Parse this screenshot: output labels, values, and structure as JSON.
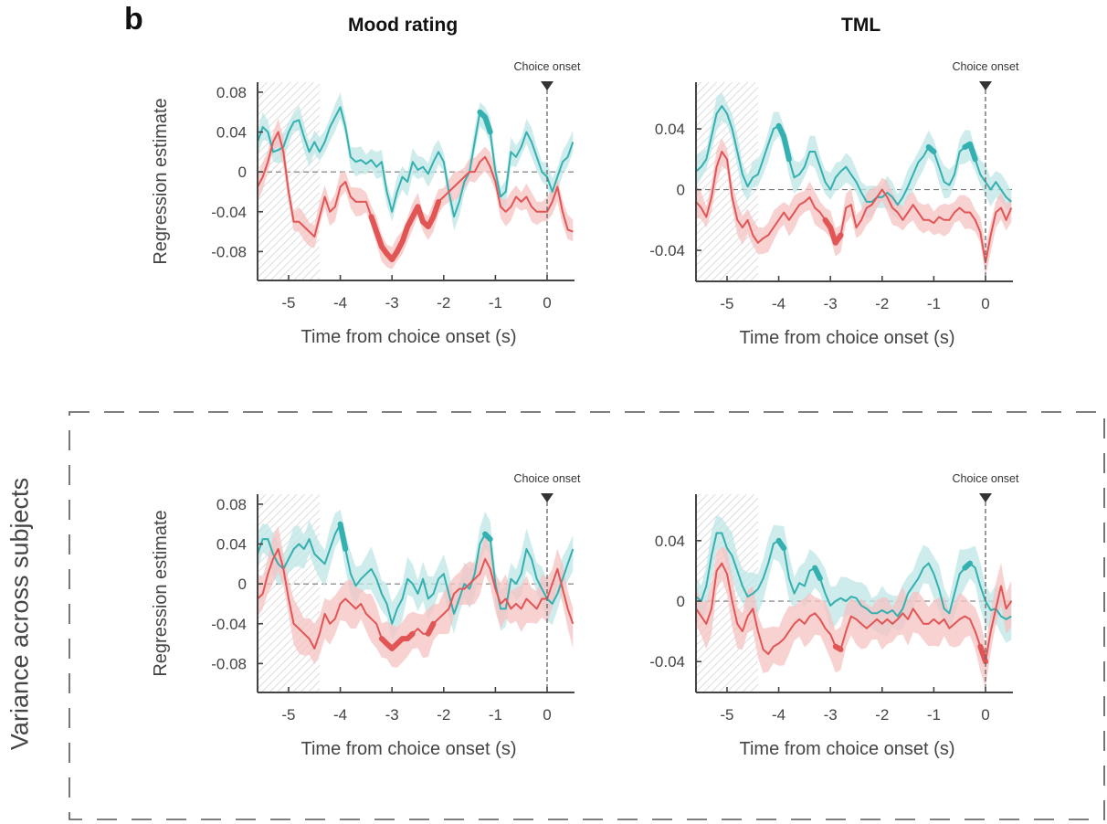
{
  "figure": {
    "panel_letter": "b",
    "column_titles": [
      "Mood rating",
      "TML"
    ],
    "row_label": "Variance across subjects",
    "colors": {
      "teal_line": "#35b0b0",
      "teal_band": "#bde5e5",
      "red_line": "#e25555",
      "red_band": "#f6c2c2",
      "axis": "#444444",
      "hatch": "#d0d0d0"
    }
  },
  "chart_data": [
    {
      "id": "top-mood",
      "type": "line",
      "title": "Mood rating",
      "xlabel": "Time from choice onset (s)",
      "ylabel": "Regression estimate",
      "xlim": [
        -5.6,
        0.53
      ],
      "ylim": [
        -0.109,
        0.09
      ],
      "xticks": [
        -5,
        -4,
        -3,
        -2,
        -1,
        0
      ],
      "xtick_labels": [
        "-5",
        "-4",
        "-3",
        "-2",
        "-1",
        "0"
      ],
      "yticks": [
        0.08,
        0.04,
        0,
        -0.04,
        -0.08
      ],
      "ytick_labels": [
        "0.08",
        "0.04",
        "0",
        "-0.04",
        "-0.08"
      ],
      "annotation": "Choice onset",
      "onset_x": 0,
      "hatched_window": [
        -5.6,
        -4.4
      ],
      "zero_line": true,
      "x": [
        -5.6,
        -5.5,
        -5.4,
        -5.3,
        -5.2,
        -5.1,
        -5.0,
        -4.9,
        -4.8,
        -4.7,
        -4.6,
        -4.5,
        -4.4,
        -4.3,
        -4.2,
        -4.1,
        -4.0,
        -3.9,
        -3.8,
        -3.7,
        -3.6,
        -3.5,
        -3.4,
        -3.3,
        -3.2,
        -3.1,
        -3.0,
        -2.9,
        -2.8,
        -2.7,
        -2.6,
        -2.5,
        -2.4,
        -2.3,
        -2.2,
        -2.1,
        -2.0,
        -1.9,
        -1.8,
        -1.7,
        -1.6,
        -1.5,
        -1.4,
        -1.3,
        -1.2,
        -1.1,
        -1.0,
        -0.9,
        -0.8,
        -0.7,
        -0.6,
        -0.5,
        -0.4,
        -0.3,
        -0.2,
        -0.1,
        0.0,
        0.1,
        0.2,
        0.3,
        0.4,
        0.5
      ],
      "series": [
        {
          "name": "teal",
          "values": [
            0.03,
            0.045,
            0.04,
            0.02,
            0.022,
            0.025,
            0.04,
            0.05,
            0.052,
            0.035,
            0.02,
            0.03,
            0.02,
            0.03,
            0.045,
            0.055,
            0.065,
            0.045,
            0.015,
            0.01,
            0.012,
            0.008,
            0.012,
            0.005,
            0.01,
            -0.02,
            -0.04,
            -0.02,
            -0.005,
            -0.01,
            0.01,
            0.002,
            0.005,
            -0.002,
            0.01,
            0.02,
            0.01,
            -0.02,
            -0.045,
            -0.03,
            -0.01,
            0.0,
            0.03,
            0.06,
            0.055,
            0.04,
            0.0,
            -0.025,
            -0.02,
            0.02,
            0.015,
            0.025,
            0.04,
            0.03,
            0.015,
            0.0,
            -0.005,
            -0.02,
            -0.005,
            0.01,
            0.015,
            0.03
          ],
          "band_halfwidth": 0.012,
          "significant": [
            [
              -1.35,
              -1.05
            ]
          ]
        },
        {
          "name": "red",
          "values": [
            -0.015,
            -0.005,
            0.01,
            0.03,
            0.04,
            0.02,
            -0.02,
            -0.05,
            -0.05,
            -0.055,
            -0.06,
            -0.065,
            -0.045,
            -0.025,
            -0.04,
            -0.035,
            -0.015,
            -0.01,
            -0.025,
            -0.03,
            -0.03,
            -0.03,
            -0.045,
            -0.06,
            -0.075,
            -0.082,
            -0.088,
            -0.08,
            -0.07,
            -0.055,
            -0.045,
            -0.035,
            -0.05,
            -0.055,
            -0.045,
            -0.03,
            -0.025,
            -0.02,
            -0.015,
            -0.01,
            -0.005,
            0.0,
            0.0,
            0.01,
            0.015,
            0.005,
            -0.01,
            -0.035,
            -0.04,
            -0.035,
            -0.025,
            -0.03,
            -0.025,
            -0.035,
            -0.04,
            -0.04,
            -0.04,
            -0.03,
            -0.015,
            -0.04,
            -0.058,
            -0.06
          ],
          "band_halfwidth": 0.012,
          "significant": [
            [
              -3.4,
              -2.1
            ]
          ]
        }
      ]
    },
    {
      "id": "top-tml",
      "type": "line",
      "title": "TML",
      "xlabel": "Time from choice onset (s)",
      "ylabel": "",
      "xlim": [
        -5.6,
        0.53
      ],
      "ylim": [
        -0.0604,
        0.0707
      ],
      "xticks": [
        -5,
        -4,
        -3,
        -2,
        -1,
        0
      ],
      "xtick_labels": [
        "-5",
        "-4",
        "-3",
        "-2",
        "-1",
        "0"
      ],
      "yticks": [
        0.04,
        0,
        -0.04
      ],
      "ytick_labels": [
        "0.04",
        "0",
        "-0.04"
      ],
      "annotation": "Choice onset",
      "onset_x": 0,
      "hatched_window": [
        -5.6,
        -4.4
      ],
      "zero_line": true,
      "x": [
        -5.6,
        -5.5,
        -5.4,
        -5.3,
        -5.2,
        -5.1,
        -5.0,
        -4.9,
        -4.8,
        -4.7,
        -4.6,
        -4.5,
        -4.4,
        -4.3,
        -4.2,
        -4.1,
        -4.0,
        -3.9,
        -3.8,
        -3.7,
        -3.6,
        -3.5,
        -3.4,
        -3.3,
        -3.2,
        -3.1,
        -3.0,
        -2.9,
        -2.8,
        -2.7,
        -2.6,
        -2.5,
        -2.4,
        -2.3,
        -2.2,
        -2.1,
        -2.0,
        -1.9,
        -1.8,
        -1.7,
        -1.6,
        -1.5,
        -1.4,
        -1.3,
        -1.2,
        -1.1,
        -1.0,
        -0.9,
        -0.8,
        -0.7,
        -0.6,
        -0.5,
        -0.4,
        -0.3,
        -0.2,
        -0.1,
        0.0,
        0.1,
        0.2,
        0.3,
        0.4,
        0.5
      ],
      "series": [
        {
          "name": "teal",
          "values": [
            0.012,
            0.015,
            0.02,
            0.035,
            0.05,
            0.055,
            0.05,
            0.04,
            0.025,
            0.01,
            0.002,
            0.008,
            0.01,
            0.02,
            0.03,
            0.04,
            0.042,
            0.035,
            0.02,
            0.008,
            0.01,
            0.015,
            0.025,
            0.025,
            0.015,
            0.005,
            0.0,
            0.008,
            0.012,
            0.015,
            0.01,
            0.005,
            -0.002,
            -0.008,
            -0.008,
            -0.005,
            -0.005,
            -0.002,
            -0.005,
            -0.01,
            -0.005,
            0.002,
            0.01,
            0.018,
            0.022,
            0.028,
            0.025,
            0.015,
            0.005,
            0.003,
            0.01,
            0.025,
            0.028,
            0.03,
            0.02,
            0.01,
            0.005,
            0.0,
            0.005,
            0.0,
            -0.005,
            -0.008
          ],
          "band_halfwidth": 0.009,
          "significant": [
            [
              -4.05,
              -3.75
            ],
            [
              -1.15,
              -0.95
            ],
            [
              -0.45,
              -0.2
            ]
          ]
        },
        {
          "name": "red",
          "values": [
            -0.008,
            -0.012,
            -0.018,
            -0.005,
            0.015,
            0.025,
            0.02,
            -0.005,
            -0.02,
            -0.025,
            -0.02,
            -0.03,
            -0.035,
            -0.032,
            -0.03,
            -0.025,
            -0.02,
            -0.015,
            -0.02,
            -0.015,
            -0.01,
            -0.008,
            -0.005,
            -0.012,
            -0.015,
            -0.02,
            -0.025,
            -0.035,
            -0.03,
            -0.012,
            -0.01,
            -0.025,
            -0.02,
            -0.012,
            -0.01,
            -0.005,
            0.0,
            -0.005,
            -0.012,
            -0.015,
            -0.02,
            -0.015,
            -0.01,
            -0.015,
            -0.02,
            -0.02,
            -0.022,
            -0.018,
            -0.02,
            -0.02,
            -0.015,
            -0.012,
            -0.015,
            -0.015,
            -0.02,
            -0.028,
            -0.048,
            -0.03,
            -0.015,
            -0.012,
            -0.02,
            -0.012
          ],
          "band_halfwidth": 0.009,
          "significant": [
            [
              -3.1,
              -2.75
            ]
          ]
        }
      ]
    },
    {
      "id": "bottom-mood",
      "type": "line",
      "title": "",
      "xlabel": "Time from choice onset (s)",
      "ylabel": "Regression estimate",
      "xlim": [
        -5.6,
        0.53
      ],
      "ylim": [
        -0.109,
        0.09
      ],
      "xticks": [
        -5,
        -4,
        -3,
        -2,
        -1,
        0
      ],
      "xtick_labels": [
        "-5",
        "-4",
        "-3",
        "-2",
        "-1",
        "0"
      ],
      "yticks": [
        0.08,
        0.04,
        0,
        -0.04,
        -0.08
      ],
      "ytick_labels": [
        "0.08",
        "0.04",
        "0",
        "-0.04",
        "-0.08"
      ],
      "annotation": "Choice onset",
      "onset_x": 0,
      "hatched_window": [
        -5.6,
        -4.4
      ],
      "zero_line": true,
      "x": [
        -5.6,
        -5.5,
        -5.4,
        -5.3,
        -5.2,
        -5.1,
        -5.0,
        -4.9,
        -4.8,
        -4.7,
        -4.6,
        -4.5,
        -4.4,
        -4.3,
        -4.2,
        -4.1,
        -4.0,
        -3.9,
        -3.8,
        -3.7,
        -3.6,
        -3.5,
        -3.4,
        -3.3,
        -3.2,
        -3.1,
        -3.0,
        -2.9,
        -2.8,
        -2.7,
        -2.6,
        -2.5,
        -2.4,
        -2.3,
        -2.2,
        -2.1,
        -2.0,
        -1.9,
        -1.8,
        -1.7,
        -1.6,
        -1.5,
        -1.4,
        -1.3,
        -1.2,
        -1.1,
        -1.0,
        -0.9,
        -0.8,
        -0.7,
        -0.6,
        -0.5,
        -0.4,
        -0.3,
        -0.2,
        -0.1,
        0.0,
        0.1,
        0.2,
        0.3,
        0.4,
        0.5
      ],
      "series": [
        {
          "name": "teal",
          "values": [
            0.03,
            0.045,
            0.045,
            0.03,
            0.02,
            0.015,
            0.025,
            0.035,
            0.04,
            0.035,
            0.045,
            0.03,
            0.025,
            0.02,
            0.035,
            0.05,
            0.06,
            0.035,
            0.01,
            -0.002,
            0.005,
            0.01,
            0.015,
            0.005,
            -0.01,
            -0.02,
            -0.04,
            -0.025,
            -0.015,
            0.005,
            0.0,
            -0.01,
            0.005,
            -0.015,
            -0.01,
            0.005,
            0.01,
            -0.01,
            -0.03,
            -0.015,
            0.0,
            -0.005,
            0.01,
            0.04,
            0.05,
            0.045,
            0.0,
            -0.025,
            -0.025,
            0.005,
            0.0,
            0.01,
            0.035,
            0.025,
            0.005,
            -0.005,
            -0.015,
            -0.02,
            -0.01,
            0.005,
            0.02,
            0.035
          ],
          "band_halfwidth": 0.018,
          "significant": [
            [
              -4.05,
              -3.9
            ],
            [
              -1.25,
              -1.1
            ]
          ]
        },
        {
          "name": "red",
          "values": [
            -0.015,
            -0.01,
            0.01,
            0.025,
            0.035,
            0.015,
            -0.015,
            -0.04,
            -0.045,
            -0.05,
            -0.055,
            -0.065,
            -0.05,
            -0.03,
            -0.04,
            -0.035,
            -0.02,
            -0.015,
            -0.02,
            -0.025,
            -0.02,
            -0.03,
            -0.035,
            -0.04,
            -0.055,
            -0.06,
            -0.065,
            -0.06,
            -0.055,
            -0.055,
            -0.05,
            -0.045,
            -0.05,
            -0.05,
            -0.04,
            -0.035,
            -0.03,
            -0.025,
            -0.01,
            -0.005,
            -0.005,
            0.0,
            0.005,
            0.01,
            0.025,
            0.015,
            -0.005,
            -0.02,
            -0.015,
            -0.025,
            -0.02,
            -0.025,
            -0.015,
            -0.02,
            -0.025,
            -0.015,
            -0.015,
            0.0,
            0.015,
            -0.005,
            -0.025,
            -0.04
          ],
          "band_halfwidth": 0.02,
          "significant": [
            [
              -3.25,
              -2.55
            ],
            [
              -2.35,
              -2.2
            ]
          ]
        }
      ]
    },
    {
      "id": "bottom-tml",
      "type": "line",
      "title": "",
      "xlabel": "Time from choice onset (s)",
      "ylabel": "",
      "xlim": [
        -5.6,
        0.53
      ],
      "ylim": [
        -0.0604,
        0.0707
      ],
      "xticks": [
        -5,
        -4,
        -3,
        -2,
        -1,
        0
      ],
      "xtick_labels": [
        "-5",
        "-4",
        "-3",
        "-2",
        "-1",
        "0"
      ],
      "yticks": [
        0.04,
        0,
        -0.04
      ],
      "ytick_labels": [
        "0.04",
        "0",
        "-0.04"
      ],
      "annotation": "Choice onset",
      "onset_x": 0,
      "hatched_window": [
        -5.6,
        -4.4
      ],
      "zero_line": true,
      "x": [
        -5.6,
        -5.5,
        -5.4,
        -5.3,
        -5.2,
        -5.1,
        -5.0,
        -4.9,
        -4.8,
        -4.7,
        -4.6,
        -4.5,
        -4.4,
        -4.3,
        -4.2,
        -4.1,
        -4.0,
        -3.9,
        -3.8,
        -3.7,
        -3.6,
        -3.5,
        -3.4,
        -3.3,
        -3.2,
        -3.1,
        -3.0,
        -2.9,
        -2.8,
        -2.7,
        -2.6,
        -2.5,
        -2.4,
        -2.3,
        -2.2,
        -2.1,
        -2.0,
        -1.9,
        -1.8,
        -1.7,
        -1.6,
        -1.5,
        -1.4,
        -1.3,
        -1.2,
        -1.1,
        -1.0,
        -0.9,
        -0.8,
        -0.7,
        -0.6,
        -0.5,
        -0.4,
        -0.3,
        -0.2,
        -0.1,
        0.0,
        0.1,
        0.2,
        0.3,
        0.4,
        0.5
      ],
      "series": [
        {
          "name": "teal",
          "values": [
            0.003,
            0.0,
            0.01,
            0.03,
            0.045,
            0.045,
            0.035,
            0.03,
            0.02,
            0.01,
            0.003,
            0.005,
            0.008,
            0.015,
            0.025,
            0.038,
            0.04,
            0.035,
            0.015,
            0.005,
            0.012,
            0.01,
            0.02,
            0.022,
            0.015,
            0.005,
            -0.003,
            0.0,
            0.002,
            0.0,
            0.003,
            0.002,
            -0.003,
            -0.005,
            -0.008,
            -0.008,
            -0.006,
            -0.008,
            -0.006,
            -0.01,
            -0.005,
            0.005,
            0.01,
            0.015,
            0.022,
            0.025,
            0.018,
            0.008,
            -0.005,
            -0.008,
            0.005,
            0.018,
            0.022,
            0.025,
            0.022,
            0.01,
            0.0,
            -0.006,
            -0.005,
            -0.01,
            -0.012,
            -0.01
          ],
          "band_halfwidth": 0.013,
          "significant": [
            [
              -4.05,
              -3.9
            ],
            [
              -3.3,
              -3.2
            ],
            [
              -0.4,
              -0.25
            ]
          ]
        },
        {
          "name": "red",
          "values": [
            -0.005,
            -0.01,
            -0.015,
            -0.005,
            0.02,
            0.025,
            0.018,
            0.0,
            -0.015,
            -0.02,
            -0.01,
            -0.005,
            -0.02,
            -0.032,
            -0.035,
            -0.03,
            -0.028,
            -0.025,
            -0.02,
            -0.015,
            -0.012,
            -0.015,
            -0.01,
            -0.008,
            -0.012,
            -0.018,
            -0.022,
            -0.03,
            -0.032,
            -0.02,
            -0.01,
            -0.012,
            -0.015,
            -0.018,
            -0.015,
            -0.012,
            -0.015,
            -0.012,
            -0.015,
            -0.012,
            -0.008,
            -0.012,
            -0.005,
            -0.01,
            -0.015,
            -0.015,
            -0.012,
            -0.015,
            -0.012,
            -0.018,
            -0.015,
            -0.012,
            -0.01,
            -0.012,
            -0.02,
            -0.03,
            -0.04,
            -0.02,
            -0.005,
            0.01,
            -0.005,
            0.0
          ],
          "band_halfwidth": 0.014,
          "significant": [
            [
              -2.95,
              -2.75
            ],
            [
              -0.1,
              0.0
            ]
          ]
        }
      ]
    }
  ]
}
